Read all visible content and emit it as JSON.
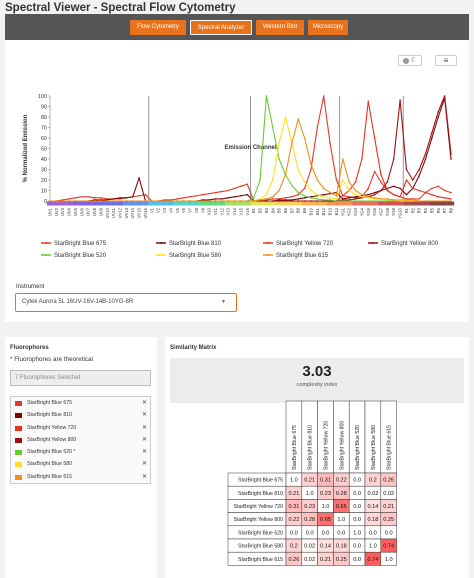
{
  "header": {
    "title": "Spectral Viewer - Spectral Flow Cytometry"
  },
  "nav": {
    "tabs": [
      {
        "label": "Flow Cytometry",
        "active": false
      },
      {
        "label": "Spectral Analyzer",
        "active": true
      },
      {
        "label": "Western Blot",
        "active": false
      },
      {
        "label": "Microscopy",
        "active": false
      }
    ]
  },
  "toolbar": {
    "theme_toggle_icon": "theme-toggle-icon",
    "menu_icon": "menu-icon"
  },
  "chart_data": {
    "type": "line",
    "xlabel": "Emission Channel",
    "ylabel": "% Normalized Emission",
    "ylim": [
      0,
      100
    ],
    "yticks": [
      0,
      10,
      20,
      30,
      40,
      50,
      60,
      70,
      80,
      90,
      100
    ],
    "grid": false,
    "legend_position": "bottom",
    "categories": [
      "UV1",
      "UV2",
      "UV3",
      "UV4",
      "UV5",
      "UV6",
      "UV7",
      "UV8",
      "UV9",
      "UV10",
      "UV11",
      "UV12",
      "UV13",
      "UV14",
      "UV15",
      "UV16",
      "V1",
      "V2",
      "V3",
      "V4",
      "V5",
      "V6",
      "V7",
      "V8",
      "V9",
      "V10",
      "V11",
      "V12",
      "V13",
      "V14",
      "V15",
      "V16",
      "B1",
      "B2",
      "B3",
      "B4",
      "B5",
      "B6",
      "B7",
      "B8",
      "B9",
      "B10",
      "B11",
      "B12",
      "B13",
      "B14",
      "YG1",
      "YG2",
      "YG3",
      "YG4",
      "YG5",
      "YG6",
      "YG7",
      "YG8",
      "YG9",
      "YG10",
      "R1",
      "R2",
      "R3",
      "R4",
      "R5",
      "R6",
      "R7",
      "R8"
    ],
    "series": [
      {
        "name": "StarBright Blue 675",
        "color": "#e03a2a",
        "values": [
          0,
          0,
          1,
          2,
          3,
          4,
          4,
          3,
          3,
          2,
          2,
          2,
          3,
          4,
          5,
          6,
          0,
          0,
          1,
          1,
          2,
          3,
          4,
          5,
          6,
          7,
          8,
          9,
          10,
          12,
          14,
          16,
          0,
          0,
          1,
          2,
          2,
          3,
          4,
          6,
          12,
          30,
          70,
          100,
          55,
          20,
          5,
          4,
          3,
          4,
          12,
          28,
          18,
          10,
          6,
          4,
          2,
          2,
          2,
          8,
          12,
          14,
          10,
          8
        ]
      },
      {
        "name": "StarBright Blue 810",
        "color": "#7a0a0a",
        "values": [
          0,
          0,
          0,
          0,
          0,
          0,
          0,
          1,
          1,
          1,
          2,
          3,
          3,
          4,
          22,
          0,
          0,
          0,
          0,
          0,
          0,
          0,
          0,
          0,
          1,
          1,
          2,
          2,
          3,
          4,
          5,
          6,
          0,
          0,
          0,
          0,
          1,
          1,
          1,
          2,
          3,
          4,
          5,
          6,
          7,
          8,
          2,
          3,
          4,
          5,
          6,
          8,
          10,
          12,
          14,
          12,
          6,
          12,
          24,
          40,
          60,
          80,
          98,
          40
        ]
      },
      {
        "name": "StarBright Yellow 720",
        "color": "#e8321c",
        "values": [
          0,
          0,
          0,
          0,
          0,
          0,
          0,
          0,
          0,
          0,
          0,
          0,
          0,
          0,
          0,
          0,
          0,
          0,
          0,
          0,
          0,
          0,
          0,
          0,
          0,
          0,
          0,
          0,
          0,
          0,
          0,
          0,
          0,
          0,
          0,
          0,
          0,
          0,
          0,
          0,
          0,
          0,
          0,
          0,
          0,
          0,
          5,
          10,
          18,
          40,
          95,
          60,
          25,
          10,
          6,
          4,
          20,
          12,
          10,
          8,
          6,
          4,
          3,
          2
        ]
      },
      {
        "name": "StarBright Yellow 800",
        "color": "#a01010",
        "values": [
          0,
          0,
          0,
          0,
          0,
          0,
          0,
          0,
          0,
          0,
          0,
          0,
          0,
          0,
          0,
          0,
          0,
          0,
          0,
          0,
          0,
          0,
          0,
          0,
          0,
          0,
          0,
          0,
          0,
          0,
          0,
          0,
          0,
          0,
          0,
          0,
          0,
          0,
          0,
          0,
          0,
          0,
          0,
          0,
          0,
          0,
          1,
          1,
          2,
          3,
          4,
          6,
          10,
          18,
          40,
          96,
          30,
          20,
          30,
          45,
          65,
          85,
          100,
          45
        ]
      },
      {
        "name": "StarBright Blue 520",
        "color": "#66cc33",
        "values": [
          0,
          0,
          0,
          0,
          0,
          0,
          0,
          0,
          0,
          0,
          0,
          0,
          0,
          0,
          0,
          0,
          0,
          0,
          0,
          0,
          0,
          0,
          0,
          0,
          0,
          0,
          0,
          0,
          0,
          0,
          0,
          0,
          3,
          20,
          100,
          70,
          40,
          25,
          15,
          8,
          5,
          3,
          2,
          1,
          1,
          0,
          0,
          0,
          0,
          0,
          0,
          0,
          0,
          0,
          0,
          0,
          0,
          0,
          0,
          0,
          0,
          0,
          0,
          0
        ]
      },
      {
        "name": "StarBright Blue 580",
        "color": "#ffe020",
        "values": [
          0,
          0,
          0,
          0,
          0,
          0,
          0,
          0,
          0,
          0,
          0,
          0,
          0,
          0,
          0,
          0,
          0,
          0,
          0,
          0,
          0,
          0,
          0,
          0,
          0,
          0,
          0,
          0,
          0,
          0,
          0,
          0,
          0,
          2,
          6,
          20,
          55,
          80,
          55,
          30,
          18,
          10,
          6,
          4,
          3,
          2,
          20,
          10,
          6,
          4,
          3,
          2,
          2,
          1,
          1,
          0,
          0,
          0,
          0,
          0,
          0,
          0,
          0,
          0
        ]
      },
      {
        "name": "StarBright Blue 615",
        "color": "#f0901c",
        "values": [
          0,
          0,
          0,
          0,
          0,
          0,
          0,
          0,
          0,
          0,
          0,
          0,
          0,
          0,
          0,
          0,
          0,
          0,
          0,
          0,
          0,
          0,
          0,
          0,
          0,
          0,
          0,
          0,
          0,
          0,
          0,
          0,
          0,
          1,
          2,
          4,
          10,
          25,
          55,
          78,
          60,
          35,
          20,
          12,
          8,
          5,
          40,
          18,
          10,
          6,
          4,
          3,
          2,
          2,
          1,
          1,
          1,
          1,
          0,
          0,
          0,
          0,
          0,
          0
        ]
      }
    ]
  },
  "instrument": {
    "label": "Instrument",
    "value": "Cytek Aurora 5L 16UV-16V-14B-10YG-8R"
  },
  "fluorophores": {
    "heading": "Fluorophores",
    "note": "* Fluorophores are theoretical",
    "select_placeholder": "7 Fluorophores Selected",
    "items": [
      {
        "name": "StarBright Blue 675",
        "color": "#e03a2a",
        "remove": "✕"
      },
      {
        "name": "StarBright Blue 810",
        "color": "#7a0a0a",
        "remove": "✕"
      },
      {
        "name": "StarBright Yellow 720",
        "color": "#e8321c",
        "remove": "✕"
      },
      {
        "name": "StarBright Yellow 800",
        "color": "#a01010",
        "remove": "✕"
      },
      {
        "name": "StarBright Blue 520 *",
        "color": "#66cc33",
        "remove": "✕"
      },
      {
        "name": "StarBright Blue 580",
        "color": "#ffe020",
        "remove": "✕"
      },
      {
        "name": "StarBright Blue 615",
        "color": "#f0901c",
        "remove": "✕"
      }
    ]
  },
  "similarity": {
    "heading": "Similarity Matrix",
    "complexity_value": "3.03",
    "complexity_label": "complexity index",
    "labels": [
      "StarBright Blue 675",
      "StarBright Blue 810",
      "StarBright Yellow 720",
      "StarBright Yellow 800",
      "StarBright Blue 520",
      "StarBright Blue 580",
      "StarBright Blue 615"
    ],
    "matrix": [
      [
        "1.0",
        "0.21",
        "0.31",
        "0.22",
        "0.0",
        "0.2",
        "0.26"
      ],
      [
        "0.21",
        "1.0",
        "0.23",
        "0.28",
        "0.0",
        "0.02",
        "0.02"
      ],
      [
        "0.31",
        "0.23",
        "1.0",
        "0.65",
        "0.0",
        "0.14",
        "0.21"
      ],
      [
        "0.22",
        "0.28",
        "0.65",
        "1.0",
        "0.0",
        "0.18",
        "0.25"
      ],
      [
        "0.0",
        "0.0",
        "0.0",
        "0.0",
        "1.0",
        "0.0",
        "0.0"
      ],
      [
        "0.2",
        "0.02",
        "0.14",
        "0.18",
        "0.0",
        "1.0",
        "0.74"
      ],
      [
        "0.26",
        "0.02",
        "0.21",
        "0.25",
        "0.0",
        "0.74",
        "1.0"
      ]
    ]
  }
}
